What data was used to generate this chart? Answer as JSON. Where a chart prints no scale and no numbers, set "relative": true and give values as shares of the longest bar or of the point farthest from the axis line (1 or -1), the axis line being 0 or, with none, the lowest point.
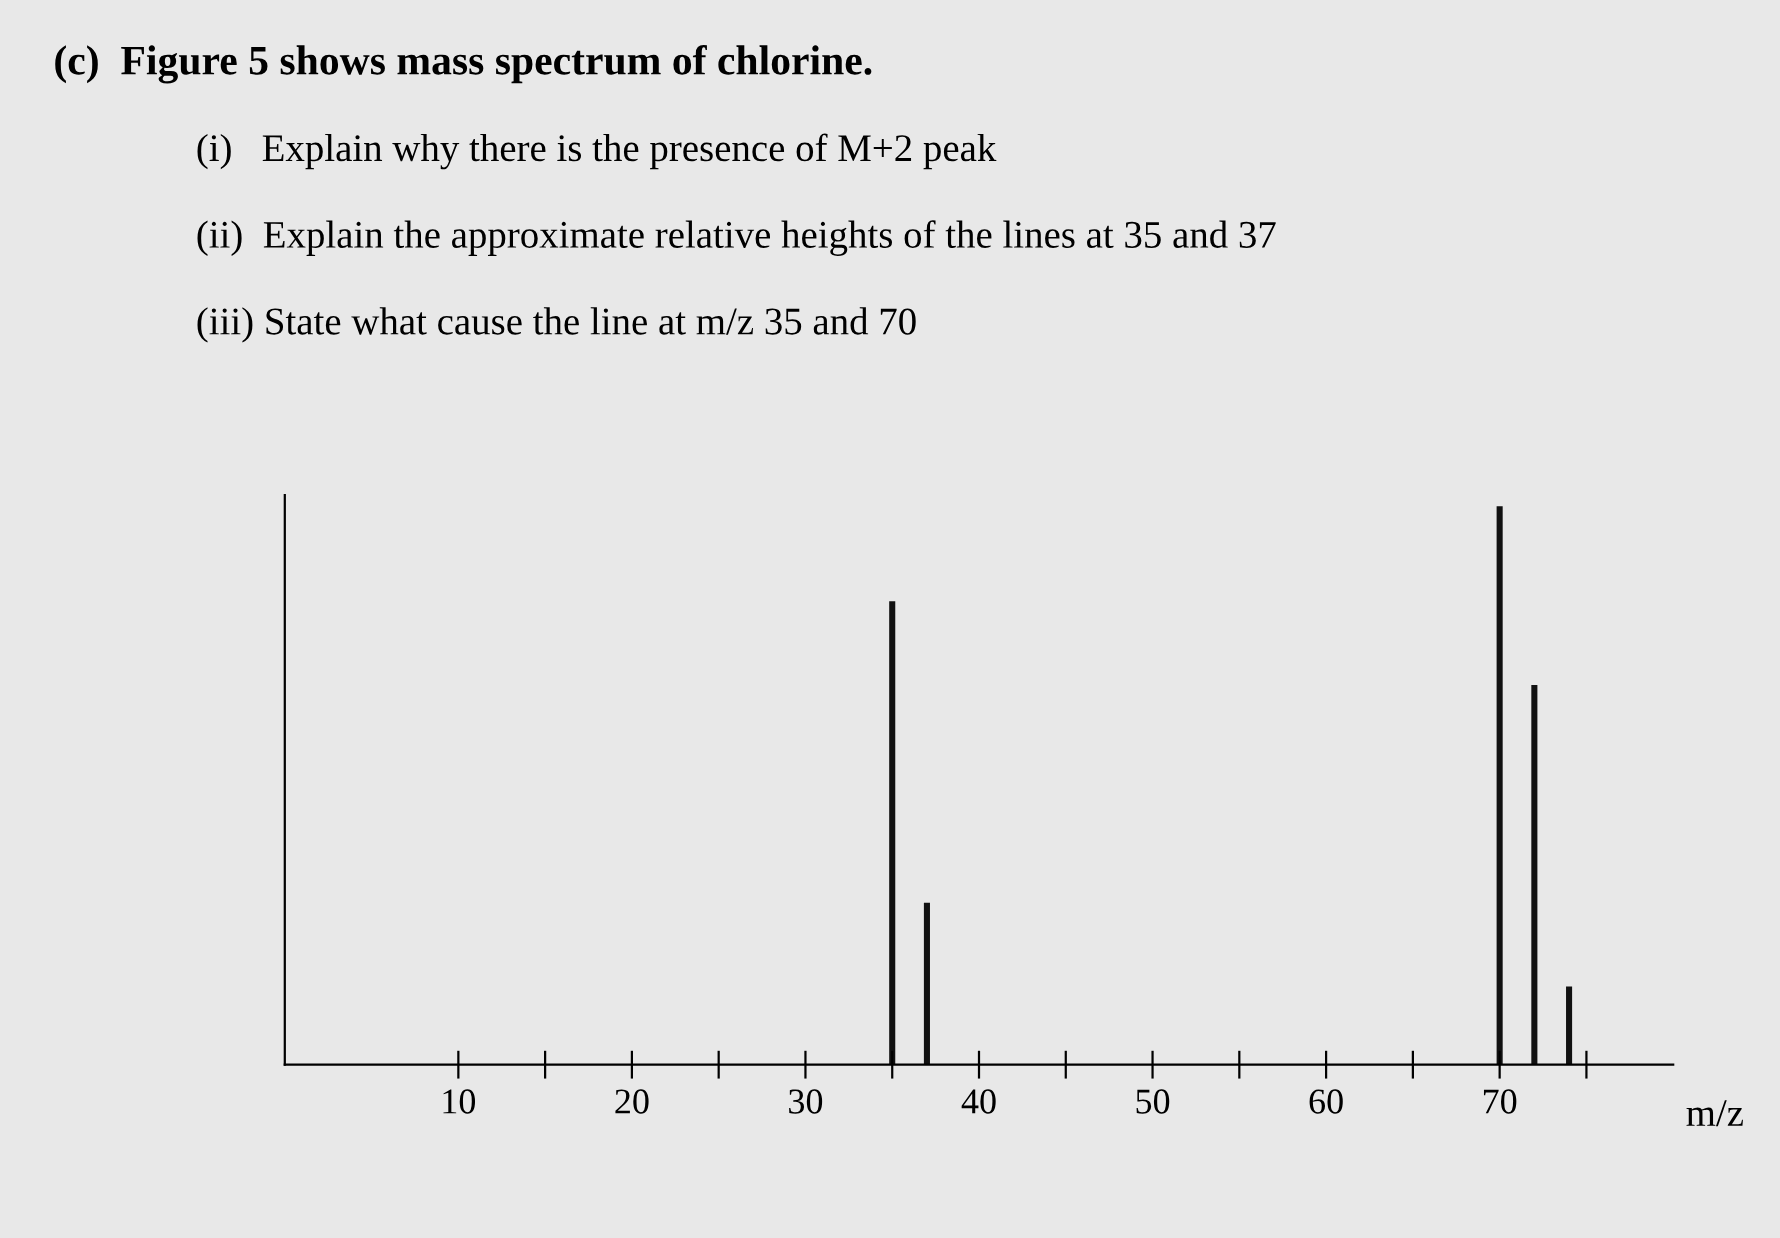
{
  "chart_data": {
    "type": "bar",
    "relative": true,
    "title": "(c)  Figure 5 shows mass spectrum of chlorine.",
    "annotations": [
      "(i)   Explain why there is the presence of M+2 peak",
      "(ii)  Explain the approximate relative heights of the lines at 35 and 37",
      "(iii) State what cause the line at m/z 35 and 70"
    ],
    "x": [
      35,
      37,
      70,
      72,
      74
    ],
    "values": [
      0.83,
      0.29,
      1.0,
      0.68,
      0.14
    ],
    "color": "#111111",
    "xlim": [
      0,
      80
    ],
    "xticks": [
      10,
      {
        "value": 15,
        "label": null
      },
      20,
      {
        "value": 25,
        "label": null
      },
      30,
      {
        "value": 35,
        "label": null
      },
      40,
      {
        "value": 45,
        "label": null
      },
      50,
      {
        "value": 55,
        "label": null
      },
      60,
      {
        "value": 65,
        "label": null
      },
      70,
      {
        "value": 75,
        "label": null
      }
    ],
    "xlabel": "m/z"
  }
}
